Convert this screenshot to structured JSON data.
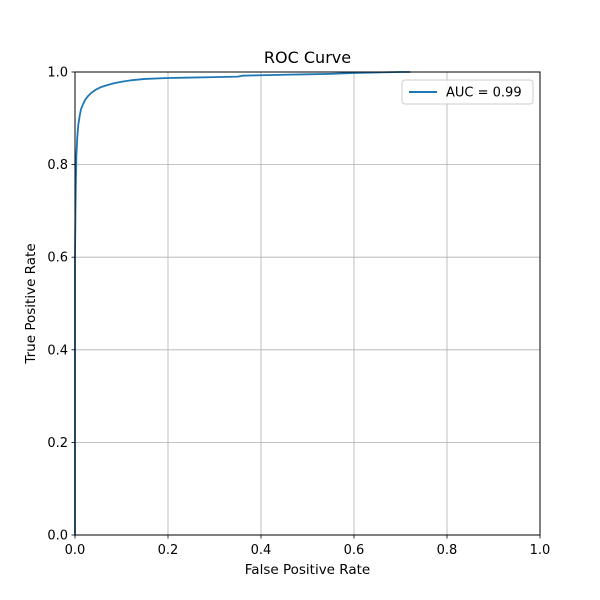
{
  "chart_data": {
    "type": "line",
    "title": "ROC Curve",
    "xlabel": "False Positive Rate",
    "ylabel": "True Positive Rate",
    "xlim": [
      0.0,
      1.0
    ],
    "ylim": [
      0.0,
      1.0
    ],
    "xticks": [
      "0.0",
      "0.2",
      "0.4",
      "0.6",
      "0.8",
      "1.0"
    ],
    "yticks": [
      "0.0",
      "0.2",
      "0.4",
      "0.6",
      "0.8",
      "1.0"
    ],
    "grid": true,
    "legend_position": "top-right",
    "series": [
      {
        "name": "AUC = 0.99",
        "color": "#1f77b4",
        "x": [
          0.0,
          0.0,
          0.001,
          0.002,
          0.003,
          0.005,
          0.007,
          0.01,
          0.013,
          0.017,
          0.022,
          0.028,
          0.035,
          0.045,
          0.055,
          0.07,
          0.085,
          0.1,
          0.12,
          0.15,
          0.2,
          0.25,
          0.3,
          0.35,
          0.36,
          0.4,
          0.45,
          0.5,
          0.55,
          0.6,
          0.65,
          0.7,
          0.72
        ],
        "y": [
          0.0,
          0.6,
          0.7,
          0.77,
          0.82,
          0.86,
          0.885,
          0.905,
          0.92,
          0.93,
          0.94,
          0.948,
          0.955,
          0.962,
          0.967,
          0.972,
          0.976,
          0.979,
          0.982,
          0.985,
          0.987,
          0.988,
          0.989,
          0.99,
          0.992,
          0.993,
          0.994,
          0.995,
          0.996,
          0.998,
          0.999,
          1.0,
          1.0
        ]
      }
    ]
  }
}
